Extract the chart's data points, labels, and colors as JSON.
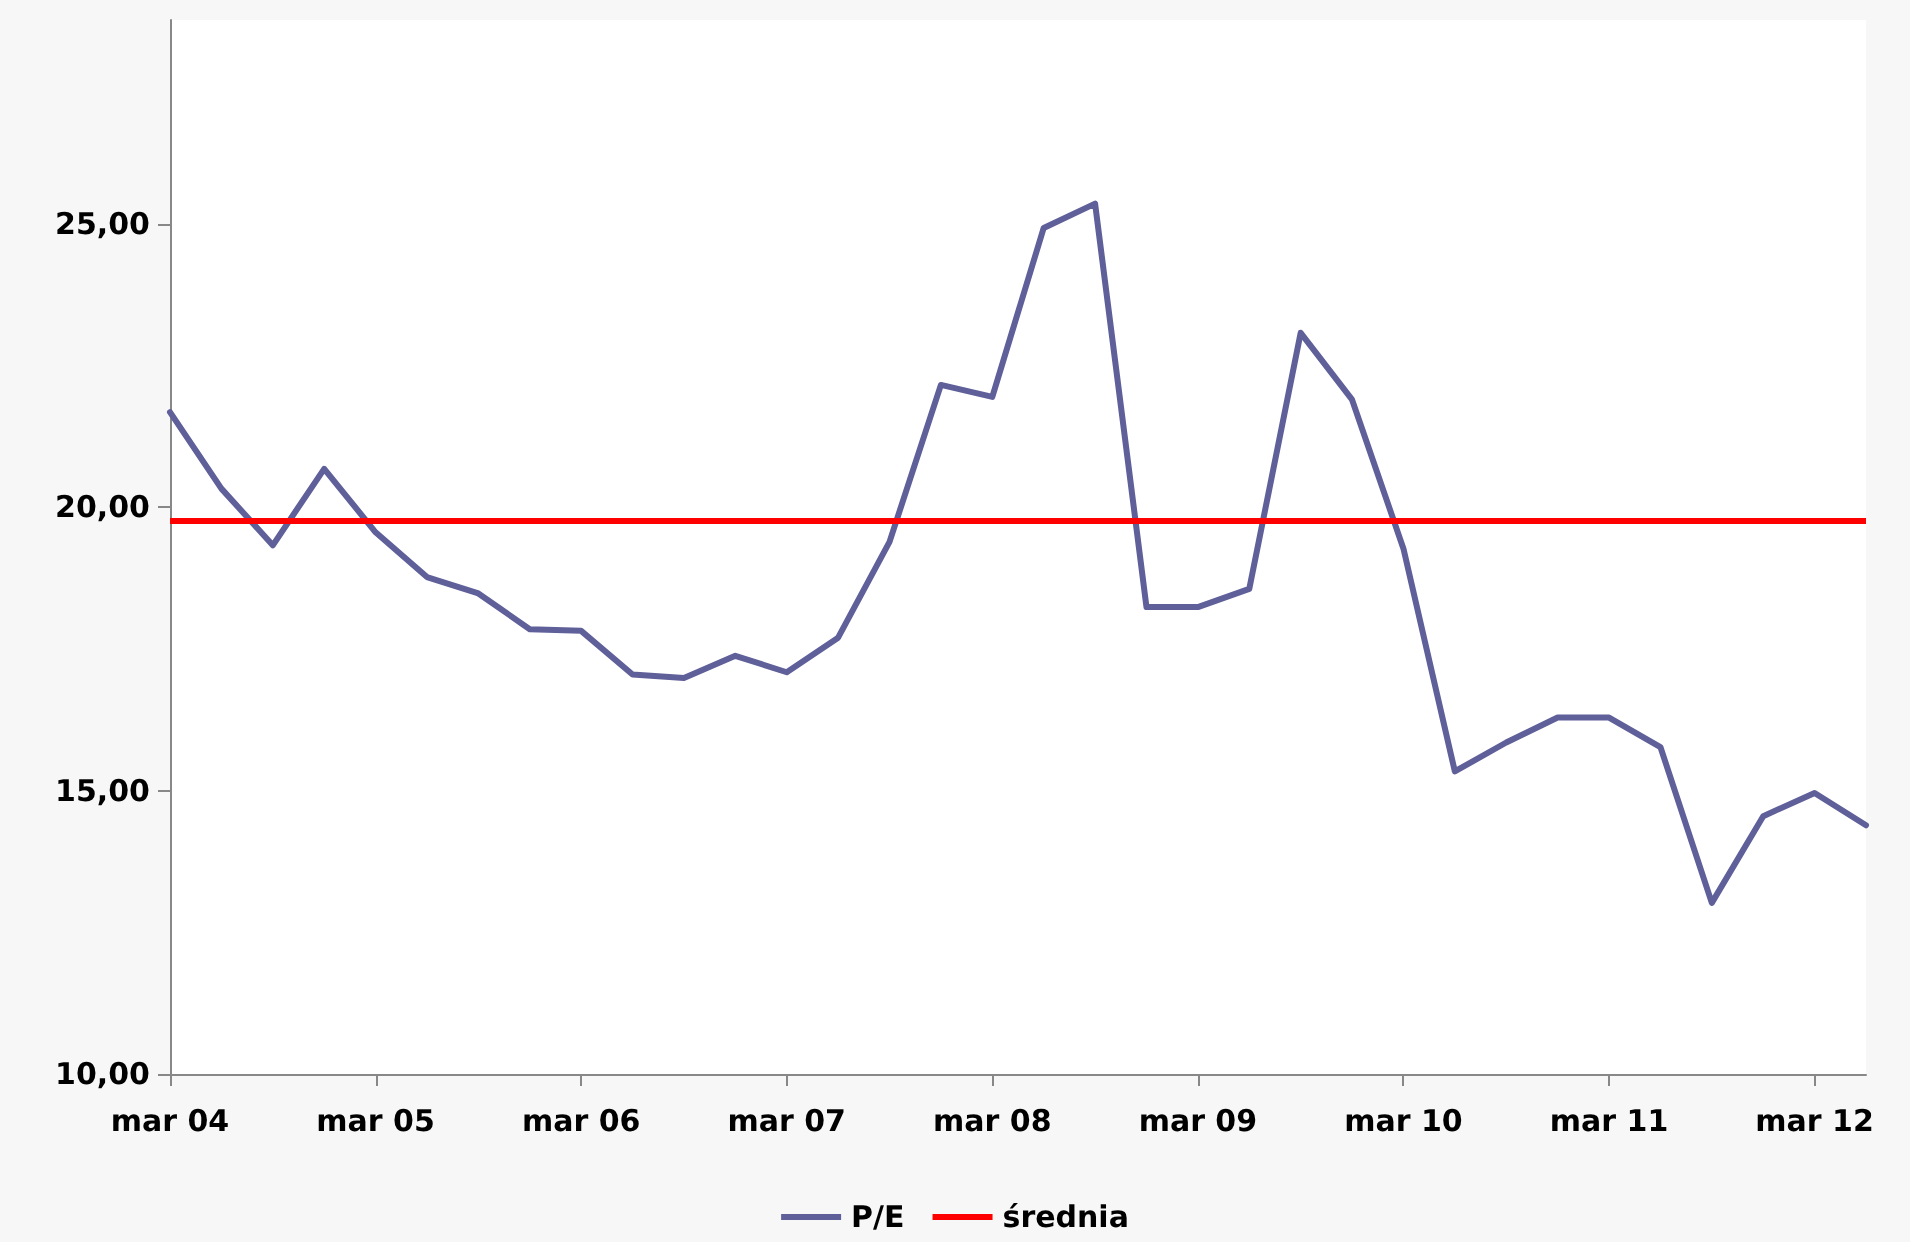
{
  "chart_data": {
    "type": "line",
    "categories": [
      "mar 04",
      null,
      null,
      null,
      "mar 05",
      null,
      null,
      null,
      "mar 06",
      null,
      null,
      null,
      "mar 07",
      null,
      null,
      null,
      "mar 08",
      null,
      null,
      null,
      "mar 09",
      null,
      null,
      null,
      "mar 10",
      null,
      null,
      null,
      "mar 11",
      null,
      null,
      null,
      "mar 12",
      null
    ],
    "series": [
      {
        "name": "P/E",
        "color": "#5f5f9a",
        "values": [
          21.68,
          20.33,
          19.33,
          20.68,
          19.56,
          18.77,
          18.48,
          17.85,
          17.82,
          17.05,
          16.99,
          17.38,
          17.09,
          17.7,
          19.39,
          22.16,
          21.95,
          24.93,
          25.36,
          18.24,
          18.24,
          18.56,
          23.08,
          21.9,
          19.27,
          15.34,
          15.85,
          16.29,
          16.29,
          15.77,
          13.02,
          14.55,
          14.96,
          14.39
        ]
      }
    ],
    "ref_lines": [
      {
        "axis": "y",
        "value": 19.76,
        "label": "średnia",
        "color": "#ff0000"
      }
    ],
    "ylim": [
      10,
      28.6
    ],
    "yticks": [
      {
        "value": 10,
        "label": "10,00"
      },
      {
        "value": 15,
        "label": "15,00"
      },
      {
        "value": 20,
        "label": "20,00"
      },
      {
        "value": 25,
        "label": "25,00"
      }
    ],
    "grid": false,
    "legend": "bottom",
    "marker": "none",
    "line_style": "solid"
  }
}
